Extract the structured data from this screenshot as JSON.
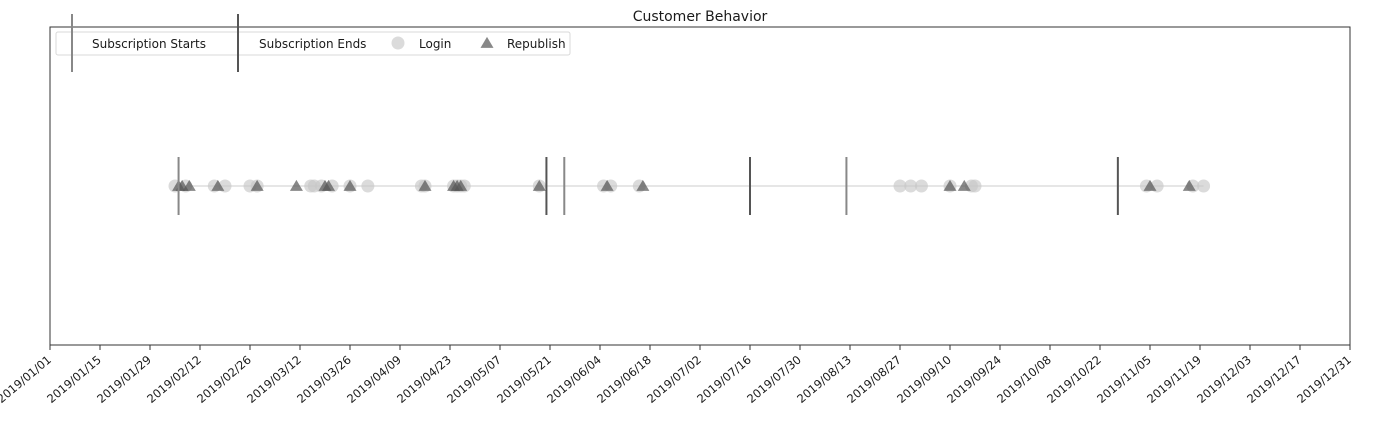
{
  "chart_data": {
    "type": "scatter",
    "title": "Customer Behavior",
    "xlabel": "",
    "ylabel": "",
    "x_axis_type": "date",
    "xlim": [
      "2019-01-01",
      "2019-12-31"
    ],
    "x_ticks": [
      "2019/01/01",
      "2019/01/15",
      "2019/01/29",
      "2019/02/12",
      "2019/02/26",
      "2019/03/12",
      "2019/03/26",
      "2019/04/09",
      "2019/04/23",
      "2019/05/07",
      "2019/05/21",
      "2019/06/04",
      "2019/06/18",
      "2019/07/02",
      "2019/07/16",
      "2019/07/30",
      "2019/08/13",
      "2019/08/27",
      "2019/09/10",
      "2019/09/24",
      "2019/10/08",
      "2019/10/22",
      "2019/11/05",
      "2019/11/19",
      "2019/12/03",
      "2019/12/17",
      "2019/12/31"
    ],
    "y_ticks_visible": false,
    "grid": false,
    "legend_position": "top-left",
    "legend": [
      {
        "label": "Subscription Starts",
        "marker": "vline",
        "color": "#888888"
      },
      {
        "label": "Subscription Ends",
        "marker": "vline",
        "color": "#555555"
      },
      {
        "label": "Login",
        "marker": "circle",
        "color": "#c8c8c8"
      },
      {
        "label": "Republish",
        "marker": "triangle",
        "color": "#555555"
      }
    ],
    "series": [
      {
        "name": "Subscription Starts",
        "marker": "vline",
        "color": "#888888",
        "x": [
          "2019-02-06",
          "2019-05-25",
          "2019-08-12"
        ]
      },
      {
        "name": "Subscription Ends",
        "marker": "vline",
        "color": "#555555",
        "x": [
          "2019-05-20",
          "2019-07-16",
          "2019-10-27"
        ]
      },
      {
        "name": "Login",
        "marker": "circle",
        "color": "#c8c8c8",
        "x": [
          "2019-02-05",
          "2019-02-08",
          "2019-02-16",
          "2019-02-19",
          "2019-02-26",
          "2019-02-28",
          "2019-03-15",
          "2019-03-16",
          "2019-03-18",
          "2019-03-21",
          "2019-03-26",
          "2019-03-31",
          "2019-04-15",
          "2019-04-16",
          "2019-04-24",
          "2019-04-25",
          "2019-04-26",
          "2019-04-27",
          "2019-05-18",
          "2019-06-05",
          "2019-06-07",
          "2019-06-15",
          "2019-08-27",
          "2019-08-30",
          "2019-09-02",
          "2019-09-10",
          "2019-09-16",
          "2019-09-17",
          "2019-11-04",
          "2019-11-07",
          "2019-11-17",
          "2019-11-20"
        ]
      },
      {
        "name": "Republish",
        "marker": "triangle",
        "color": "#555555",
        "x": [
          "2019-02-06",
          "2019-02-07",
          "2019-02-09",
          "2019-02-17",
          "2019-02-28",
          "2019-03-11",
          "2019-03-19",
          "2019-03-20",
          "2019-03-26",
          "2019-04-16",
          "2019-04-24",
          "2019-04-25",
          "2019-04-26",
          "2019-05-18",
          "2019-06-06",
          "2019-06-16",
          "2019-09-10",
          "2019-09-14",
          "2019-11-05",
          "2019-11-16"
        ]
      }
    ]
  }
}
